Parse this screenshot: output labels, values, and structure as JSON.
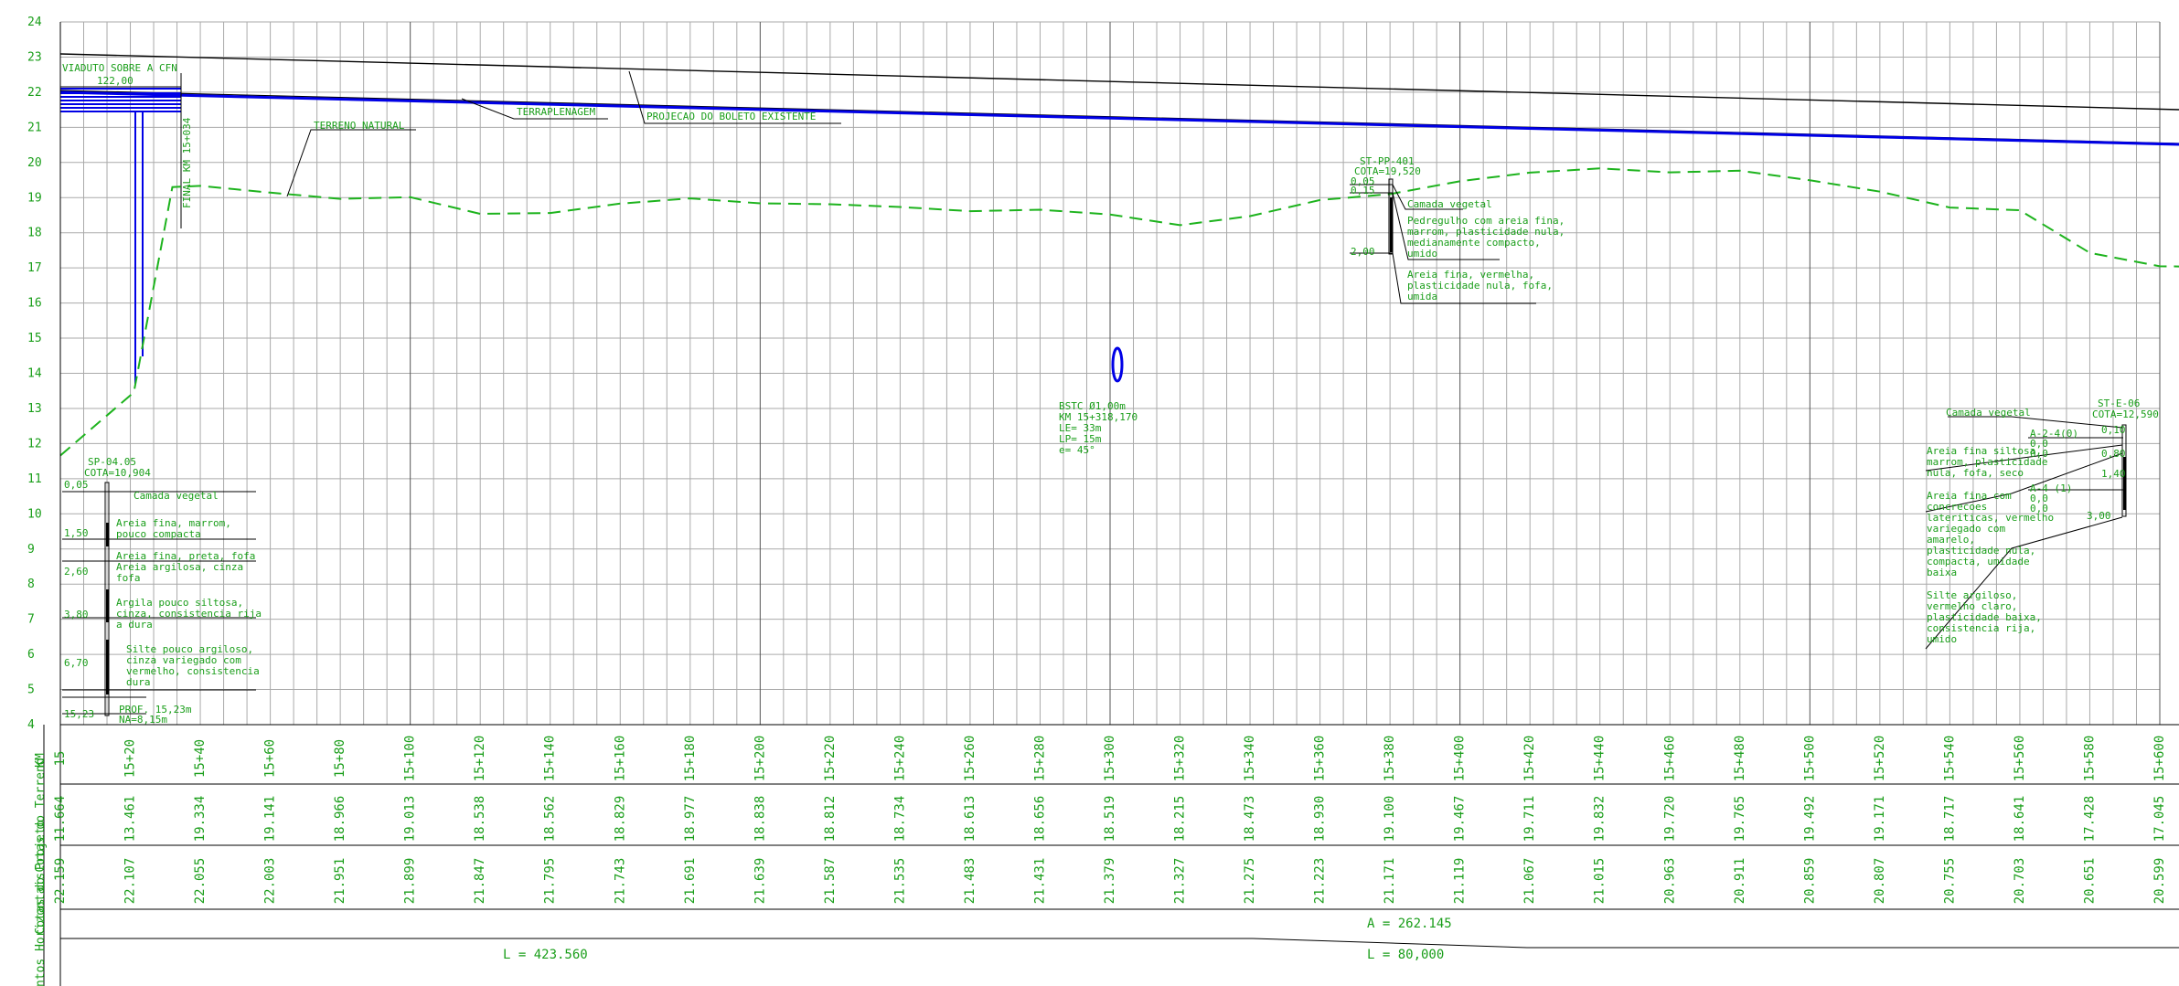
{
  "elevation_ticks": [
    "24",
    "23",
    "22",
    "21",
    "20",
    "19",
    "18",
    "17",
    "16",
    "15",
    "14",
    "13",
    "12",
    "11",
    "10",
    "9",
    "8",
    "7",
    "6",
    "5",
    "4"
  ],
  "stations": [
    "15",
    "15+20",
    "15+40",
    "15+60",
    "15+80",
    "15+100",
    "15+120",
    "15+140",
    "15+160",
    "15+180",
    "15+200",
    "15+220",
    "15+240",
    "15+260",
    "15+280",
    "15+300",
    "15+320",
    "15+340",
    "15+360",
    "15+380",
    "15+400",
    "15+420",
    "15+440",
    "15+460",
    "15+480",
    "15+500",
    "15+520",
    "15+540",
    "15+560",
    "15+580",
    "15+600"
  ],
  "terrain_elevations": [
    "11.664",
    "13.461",
    "19.334",
    "19.141",
    "18.966",
    "19.013",
    "18.538",
    "18.562",
    "18.829",
    "18.977",
    "18.838",
    "18.812",
    "18.734",
    "18.613",
    "18.656",
    "18.519",
    "18.215",
    "18.473",
    "18.930",
    "19.100",
    "19.467",
    "19.711",
    "19.832",
    "19.720",
    "19.765",
    "19.492",
    "19.171",
    "18.717",
    "18.641",
    "17.428",
    "17.045"
  ],
  "project_elevations": [
    "22.159",
    "22.107",
    "22.055",
    "22.003",
    "21.951",
    "21.899",
    "21.847",
    "21.795",
    "21.743",
    "21.691",
    "21.639",
    "21.587",
    "21.535",
    "21.483",
    "21.431",
    "21.379",
    "21.327",
    "21.275",
    "21.223",
    "21.171",
    "21.119",
    "21.067",
    "21.015",
    "20.963",
    "20.911",
    "20.859",
    "20.807",
    "20.755",
    "20.703",
    "20.651",
    "20.599"
  ],
  "row_labels": {
    "km": "KM",
    "terrain": "Cotas do Terreno",
    "project": "Cotas do Projeto",
    "horizontal": "Elementos Horizontais"
  },
  "horizontal_elements": {
    "a": "A = 262.145",
    "l1": "L = 423.560",
    "l2": "L = 80,000"
  },
  "annotations": {
    "viaduct": "VIADUTO SOBRE A CFN",
    "viaduct_length": "122,00",
    "final_km": "FINAL KM 15+034",
    "terreno_natural": "TERRENO NATURAL",
    "terraplenagem": "TERRAPLENAGEM",
    "projecao": "PROJECAO DO BOLETO EXISTENTE",
    "bstc": [
      "BSTC Ø1,00m",
      "KM 15+318,170",
      "LE= 33m",
      "LP= 15m",
      "e= 45°"
    ]
  },
  "boreholes": {
    "sp0405": {
      "name": "SP-04.05",
      "cota": "COTA=10,904",
      "depths": [
        "0,05",
        "1,50",
        "2,60",
        "3,80",
        "6,70",
        "15,23"
      ],
      "layers": [
        [
          "Camada vegetal"
        ],
        [
          "Areia fina, marrom,",
          "pouco compacta"
        ],
        [
          "Areia fina, preta, fofa"
        ],
        [
          "Areia argilosa, cinza",
          "fofa"
        ],
        [
          "Argila pouco siltosa,",
          "cinza, consistencia rija",
          "a dura"
        ],
        [
          "Silte pouco argiloso,",
          "cinza variegado com",
          "vermelho, consistencia",
          "dura"
        ]
      ],
      "prof": "PROF. 15,23m",
      "na": "NA=8,15m"
    },
    "stpp401": {
      "name": "ST-PP-401",
      "cota": "COTA=19,520",
      "depths": [
        "0,05",
        "0,15",
        "2,00"
      ],
      "layers": [
        [
          "Camada vegetal"
        ],
        [
          "Pedregulho com areia fina,",
          "marrom, plasticidade nula,",
          "medianamente compacto,",
          "umido"
        ],
        [
          "Areia fina, vermelha,",
          "plasticidade nula, fofa,",
          "umida"
        ]
      ]
    },
    "ste06": {
      "name": "ST-E-06",
      "cota": "COTA=12,590",
      "depths": [
        "0,10",
        "0,80",
        "1,40",
        "3,00"
      ],
      "classes": [
        [
          "A-2-4(0)",
          "0,0",
          "0,0"
        ],
        [
          "A-4 (1)",
          "0,0",
          "0,0"
        ]
      ],
      "layers": [
        [
          "Camada vegetal"
        ],
        [
          "Areia fina siltosa,",
          "marrom, plasticidade",
          "nula, fofa, seco"
        ],
        [
          "Areia fina com",
          "concrecoes",
          "lateriticas, vermelho",
          "variegado com",
          "amarelo,",
          "plasticidade nula,",
          "compacta, umidade",
          "baixa"
        ],
        [
          "Silte argiloso,",
          "vermelho claro,",
          "plasticidade baixa,",
          "consistencia rija,",
          "umido"
        ]
      ]
    }
  },
  "colors": {
    "grid": "#aaaaaa",
    "terrain": "#1db31d",
    "project": "#0000e6",
    "text": "#1a9e1a"
  }
}
